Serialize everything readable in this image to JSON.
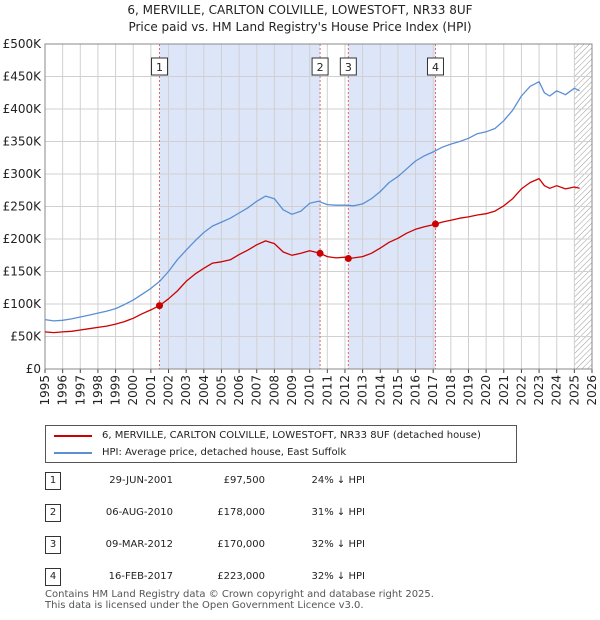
{
  "title_line1": "6, MERVILLE, CARLTON COLVILLE, LOWESTOFT, NR33 8UF",
  "title_line2": "Price paid vs. HM Land Registry's House Price Index (HPI)",
  "colors": {
    "property": "#cc0000",
    "hpi": "#5b8fd4",
    "shade": "#dde6f8",
    "hatch": "#999999",
    "grid": "#d0d0d0",
    "marker_line": "#e06666"
  },
  "legend": {
    "property_label": "6, MERVILLE, CARLTON COLVILLE, LOWESTOFT, NR33 8UF (detached house)",
    "hpi_label": "HPI: Average price, detached house, East Suffolk"
  },
  "sales": [
    {
      "num": "1",
      "date": "29-JUN-2001",
      "price": "£97,500",
      "hpi": "24% ↓ HPI"
    },
    {
      "num": "2",
      "date": "06-AUG-2010",
      "price": "£178,000",
      "hpi": "31% ↓ HPI"
    },
    {
      "num": "3",
      "date": "09-MAR-2012",
      "price": "£170,000",
      "hpi": "32% ↓ HPI"
    },
    {
      "num": "4",
      "date": "16-FEB-2017",
      "price": "£223,000",
      "hpi": "32% ↓ HPI"
    }
  ],
  "footer_line1": "Contains HM Land Registry data © Crown copyright and database right 2025.",
  "footer_line2": "This data is licensed under the Open Government Licence v3.0.",
  "chart_data": {
    "type": "line",
    "title": "6, MERVILLE, CARLTON COLVILLE, LOWESTOFT, NR33 8UF — Price paid vs. HM Land Registry's House Price Index (HPI)",
    "xlabel": "",
    "ylabel": "",
    "xlim": [
      1995,
      2026
    ],
    "ylim": [
      0,
      500000
    ],
    "grid": true,
    "legend_position": "bottom",
    "x_ticks": [
      1995,
      1996,
      1997,
      1998,
      1999,
      2000,
      2001,
      2002,
      2003,
      2004,
      2005,
      2006,
      2007,
      2008,
      2009,
      2010,
      2011,
      2012,
      2013,
      2014,
      2015,
      2016,
      2017,
      2018,
      2019,
      2020,
      2021,
      2022,
      2023,
      2024,
      2025,
      2026
    ],
    "y_ticks": [
      {
        "value": 0,
        "label": "£0"
      },
      {
        "value": 50000,
        "label": "£50K"
      },
      {
        "value": 100000,
        "label": "£100K"
      },
      {
        "value": 150000,
        "label": "£150K"
      },
      {
        "value": 200000,
        "label": "£200K"
      },
      {
        "value": 250000,
        "label": "£250K"
      },
      {
        "value": 300000,
        "label": "£300K"
      },
      {
        "value": 350000,
        "label": "£350K"
      },
      {
        "value": 400000,
        "label": "£400K"
      },
      {
        "value": 450000,
        "label": "£450K"
      },
      {
        "value": 500000,
        "label": "£500K"
      }
    ],
    "shaded_regions": [
      [
        2001.49,
        2010.59
      ],
      [
        2012.19,
        2017.13
      ]
    ],
    "hatched_from": 2025.0,
    "sale_markers": [
      {
        "label": "1",
        "x": 2001.49,
        "y": 97500
      },
      {
        "label": "2",
        "x": 2010.59,
        "y": 178000
      },
      {
        "label": "3",
        "x": 2012.19,
        "y": 170000
      },
      {
        "label": "4",
        "x": 2017.13,
        "y": 223000
      }
    ],
    "series": [
      {
        "name": "HPI: Average price, detached house, East Suffolk",
        "color": "#5b8fd4",
        "x": [
          1995,
          1995.5,
          1996,
          1996.5,
          1997,
          1997.5,
          1998,
          1998.5,
          1999,
          1999.5,
          2000,
          2000.5,
          2001,
          2001.5,
          2002,
          2002.5,
          2003,
          2003.5,
          2004,
          2004.5,
          2005,
          2005.5,
          2006,
          2006.5,
          2007,
          2007.5,
          2008,
          2008.5,
          2009,
          2009.5,
          2010,
          2010.5,
          2011,
          2011.5,
          2012,
          2012.5,
          2013,
          2013.5,
          2014,
          2014.5,
          2015,
          2015.5,
          2016,
          2016.5,
          2017,
          2017.5,
          2018,
          2018.5,
          2019,
          2019.5,
          2020,
          2020.5,
          2021,
          2021.5,
          2022,
          2022.5,
          2023,
          2023.3,
          2023.6,
          2024,
          2024.5,
          2025,
          2025.3
        ],
        "values": [
          76000,
          74000,
          75000,
          77000,
          80000,
          83000,
          86000,
          89000,
          93000,
          99000,
          106000,
          115000,
          124000,
          135000,
          150000,
          168000,
          183000,
          197000,
          210000,
          220000,
          226000,
          232000,
          240000,
          248000,
          258000,
          266000,
          262000,
          245000,
          238000,
          243000,
          255000,
          258000,
          253000,
          252000,
          252000,
          251000,
          254000,
          262000,
          273000,
          287000,
          296000,
          308000,
          320000,
          328000,
          334000,
          341000,
          346000,
          350000,
          355000,
          362000,
          365000,
          370000,
          382000,
          398000,
          420000,
          435000,
          442000,
          425000,
          420000,
          428000,
          422000,
          432000,
          428000
        ]
      },
      {
        "name": "6, MERVILLE, CARLTON COLVILLE, LOWESTOFT, NR33 8UF (detached house)",
        "color": "#cc0000",
        "x": [
          1995,
          1995.5,
          1996,
          1996.5,
          1997,
          1997.5,
          1998,
          1998.5,
          1999,
          1999.5,
          2000,
          2000.5,
          2001,
          2001.49,
          2002,
          2002.5,
          2003,
          2003.5,
          2004,
          2004.5,
          2005,
          2005.5,
          2006,
          2006.5,
          2007,
          2007.5,
          2008,
          2008.5,
          2009,
          2009.5,
          2010,
          2010.59,
          2011,
          2011.5,
          2012,
          2012.19,
          2012.5,
          2013,
          2013.5,
          2014,
          2014.5,
          2015,
          2015.5,
          2016,
          2016.5,
          2017,
          2017.13,
          2017.5,
          2018,
          2018.5,
          2019,
          2019.5,
          2020,
          2020.5,
          2021,
          2021.5,
          2022,
          2022.5,
          2023,
          2023.3,
          2023.6,
          2024,
          2024.5,
          2025,
          2025.3
        ],
        "values": [
          57000,
          56000,
          57000,
          58000,
          60000,
          62000,
          64000,
          66000,
          69000,
          73000,
          78000,
          85000,
          91000,
          97500,
          108000,
          120000,
          135000,
          146000,
          155000,
          163000,
          165000,
          168000,
          176000,
          183000,
          191000,
          197000,
          193000,
          180000,
          175000,
          178000,
          182000,
          178000,
          173000,
          171000,
          172000,
          170000,
          171000,
          173000,
          178000,
          186000,
          195000,
          201000,
          209000,
          215000,
          219000,
          222000,
          223000,
          226000,
          229000,
          232000,
          234000,
          237000,
          239000,
          243000,
          251000,
          262000,
          277000,
          287000,
          293000,
          282000,
          278000,
          282000,
          277000,
          280000,
          278000
        ]
      }
    ]
  }
}
